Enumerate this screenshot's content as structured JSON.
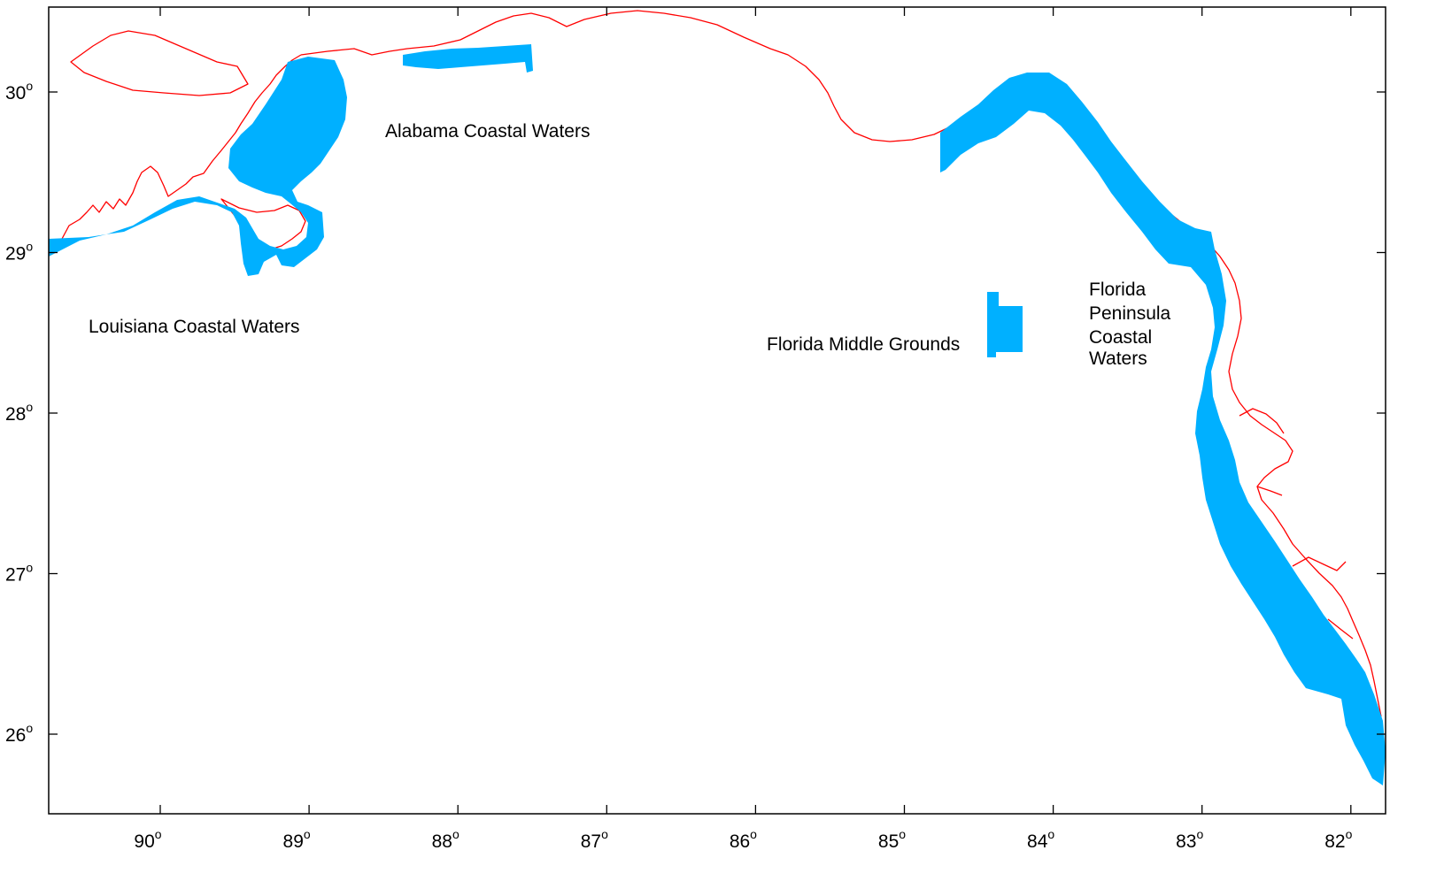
{
  "map": {
    "axis_degree_symbol": "o",
    "x_ticks": [
      {
        "value": "90",
        "lon": -90
      },
      {
        "value": "89",
        "lon": -89
      },
      {
        "value": "88",
        "lon": -88
      },
      {
        "value": "87",
        "lon": -87
      },
      {
        "value": "86",
        "lon": -86
      },
      {
        "value": "85",
        "lon": -85
      },
      {
        "value": "84",
        "lon": -84
      },
      {
        "value": "83",
        "lon": -83
      },
      {
        "value": "82",
        "lon": -82
      }
    ],
    "y_ticks": [
      {
        "value": "30",
        "lat": 30
      },
      {
        "value": "29",
        "lat": 29
      },
      {
        "value": "28",
        "lat": 28
      },
      {
        "value": "27",
        "lat": 27
      },
      {
        "value": "26",
        "lat": 26
      }
    ],
    "labels": {
      "louisiana": "Louisiana Coastal Waters",
      "alabama": "Alabama Coastal Waters",
      "middle_grounds": "Florida Middle Grounds",
      "peninsula": [
        "Florida",
        "Peninsula",
        "Coastal",
        "Waters"
      ]
    },
    "colors": {
      "coastline": "#ff0000",
      "zone_fill": "#00b0ff",
      "frame": "#000000"
    },
    "legend": ""
  }
}
